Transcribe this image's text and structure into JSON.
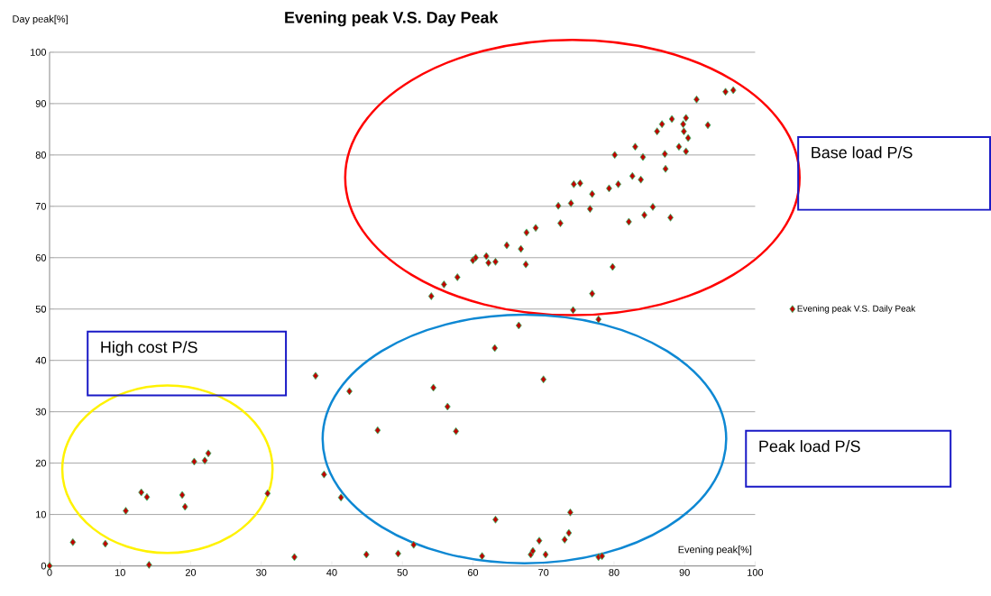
{
  "chart_data": {
    "type": "scatter",
    "title": "Evening peak V.S. Day Peak",
    "xlabel": "Evening peak[%]",
    "ylabel": "Day peak[%]",
    "xlim": [
      0,
      100
    ],
    "ylim": [
      0,
      100
    ],
    "xticks": [
      0,
      10,
      20,
      30,
      40,
      50,
      60,
      70,
      80,
      90,
      100
    ],
    "yticks": [
      0,
      10,
      20,
      30,
      40,
      50,
      60,
      70,
      80,
      90,
      100
    ],
    "grid": "y",
    "legend": "right",
    "marker": "diamond",
    "series": [
      {
        "name": "Evening peak V.S. Daily Peak",
        "color": "#c00000",
        "x": [
          0,
          3.3,
          7.9,
          10.8,
          13,
          13.8,
          14.1,
          18.8,
          19.2,
          20.5,
          22,
          22.5,
          30.9,
          34.7,
          37.7,
          38.9,
          41.3,
          42.5,
          44.9,
          46.5,
          49.4,
          51.6,
          54.4,
          56.4,
          57.6,
          61.3,
          63.1,
          63.2,
          66.5,
          68.2,
          68.5,
          69.4,
          70,
          70.3,
          73,
          73.6,
          73.8,
          74.2,
          77.8,
          78.3,
          76.9,
          77.8,
          79.8,
          54.1,
          55.9,
          57.8,
          60,
          60.4,
          61.9,
          62.2,
          63.2,
          64.8,
          66.8,
          67.5,
          67.6,
          68.9,
          72.1,
          72.4,
          73.9,
          74.3,
          75.2,
          76.6,
          76.9,
          79.3,
          80.1,
          80.6,
          82.1,
          82.6,
          83,
          83.8,
          84.1,
          84.3,
          85.5,
          86.1,
          86.8,
          87.2,
          87.3,
          88,
          88.2,
          89.2,
          89.8,
          89.9,
          90.2,
          90.2,
          90.5,
          91.7,
          93.3,
          95.8,
          96.9
        ],
        "values": [
          0,
          4.6,
          4.3,
          10.7,
          14.3,
          13.4,
          0.2,
          13.8,
          11.5,
          20.3,
          20.5,
          21.9,
          14.1,
          1.7,
          37,
          17.8,
          13.3,
          34,
          2.2,
          26.4,
          2.4,
          4.1,
          34.7,
          31,
          26.2,
          1.9,
          42.4,
          9,
          46.8,
          2.2,
          2.9,
          4.9,
          36.3,
          2.2,
          5.1,
          6.4,
          10.4,
          49.8,
          1.7,
          1.9,
          53,
          48,
          58.2,
          52.5,
          54.8,
          56.2,
          59.5,
          60,
          60.3,
          59,
          59.2,
          62.4,
          61.7,
          58.7,
          64.9,
          65.8,
          70.1,
          66.7,
          70.6,
          74.3,
          74.5,
          69.5,
          72.4,
          73.5,
          80,
          74.3,
          67,
          75.9,
          81.6,
          75.2,
          79.6,
          68.3,
          69.9,
          84.6,
          86,
          80.2,
          77.3,
          67.8,
          87,
          81.6,
          86,
          84.6,
          80.7,
          87.2,
          83.3,
          90.8,
          85.8,
          92.3,
          92.6
        ]
      }
    ],
    "annotations": [
      "Base load P/S",
      "High cost P/S",
      "Peak load P/S"
    ]
  }
}
